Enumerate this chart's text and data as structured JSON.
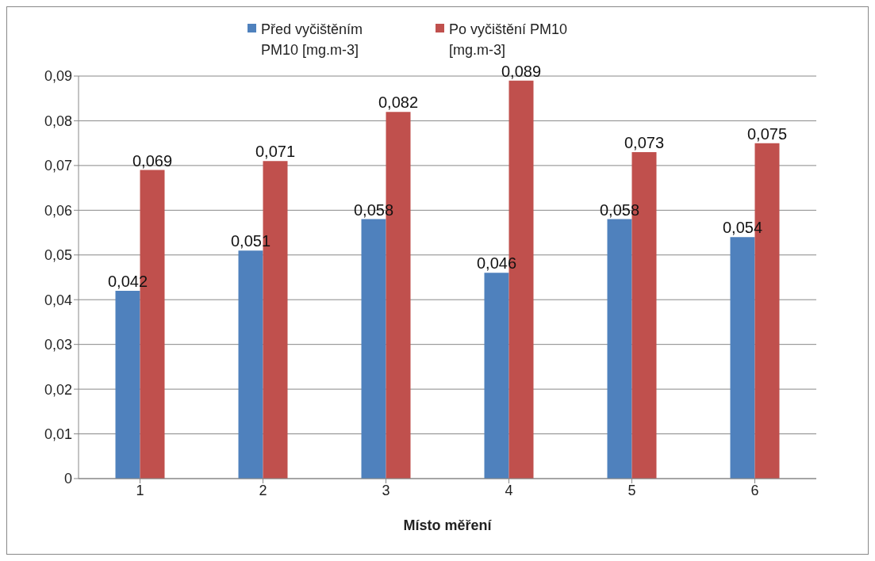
{
  "chart_data": {
    "type": "bar",
    "xlabel": "Místo měření",
    "categories": [
      "1",
      "2",
      "3",
      "4",
      "5",
      "6"
    ],
    "series": [
      {
        "name": "Před vyčištěním PM10 [mg.m-3]",
        "color": "#4f81bd",
        "values": [
          0.042,
          0.051,
          0.058,
          0.046,
          0.058,
          0.054
        ],
        "value_labels": [
          "0,042",
          "0,051",
          "0,058",
          "0,046",
          "0,058",
          "0,054"
        ]
      },
      {
        "name": "Po vyčištění PM10 [mg.m-3]",
        "color": "#c0504d",
        "values": [
          0.069,
          0.071,
          0.082,
          0.089,
          0.073,
          0.075
        ],
        "value_labels": [
          "0,069",
          "0,071",
          "0,082",
          "0,089",
          "0,073",
          "0,075"
        ]
      }
    ],
    "ylim": [
      0,
      0.09
    ],
    "yticks": [
      {
        "value": 0,
        "label": "0"
      },
      {
        "value": 0.01,
        "label": "0,01"
      },
      {
        "value": 0.02,
        "label": "0,02"
      },
      {
        "value": 0.03,
        "label": "0,03"
      },
      {
        "value": 0.04,
        "label": "0,04"
      },
      {
        "value": 0.05,
        "label": "0,05"
      },
      {
        "value": 0.06,
        "label": "0,06"
      },
      {
        "value": 0.07,
        "label": "0,07"
      },
      {
        "value": 0.08,
        "label": "0,08"
      },
      {
        "value": 0.09,
        "label": "0,09"
      }
    ],
    "grid": "y",
    "legend": "top"
  }
}
